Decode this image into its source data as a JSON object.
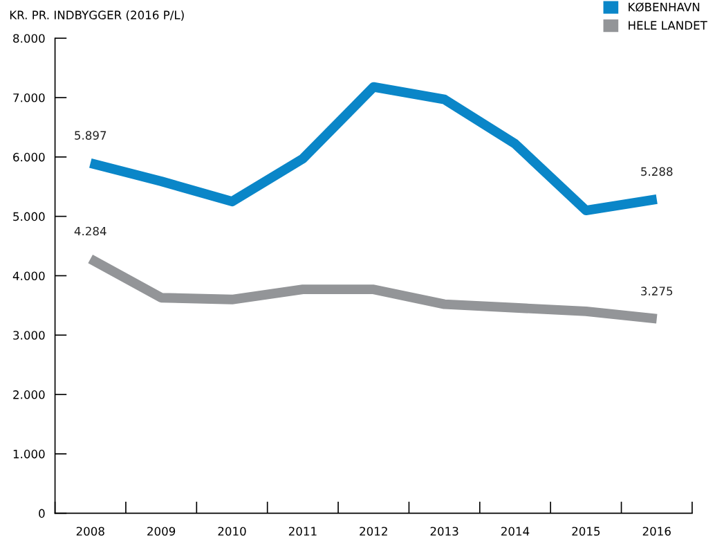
{
  "chart_data": {
    "type": "line",
    "ylabel": "KR. PR. INDBYGGER (2016 P/L)",
    "categories": [
      "2008",
      "2009",
      "2010",
      "2011",
      "2012",
      "2013",
      "2014",
      "2015",
      "2016"
    ],
    "series": [
      {
        "name": "KØBENHAVN",
        "color": "#0a86c8",
        "values": [
          5897,
          5590,
          5250,
          5970,
          7180,
          6970,
          6220,
          5100,
          5288
        ],
        "value_labels": [
          "5.897",
          null,
          null,
          null,
          null,
          null,
          null,
          null,
          "5.288"
        ]
      },
      {
        "name": "HELE LANDET",
        "color": "#939598",
        "values": [
          4284,
          3630,
          3600,
          3770,
          3770,
          3520,
          3460,
          3400,
          3275
        ],
        "value_labels": [
          "4.284",
          null,
          null,
          null,
          null,
          null,
          null,
          null,
          "3.275"
        ]
      }
    ],
    "ylim": [
      0,
      8000
    ],
    "yticks": [
      0,
      {
        "value": 1000,
        "label": "1.000"
      },
      {
        "value": 2000,
        "label": "2.000"
      },
      {
        "value": 3000,
        "label": "3.000"
      },
      {
        "value": 4000,
        "label": "4.000"
      },
      {
        "value": 5000,
        "label": "5.000"
      },
      {
        "value": 6000,
        "label": "6.000"
      },
      {
        "value": 7000,
        "label": "7.000"
      },
      {
        "value": 8000,
        "label": "8.000"
      }
    ],
    "grid": false,
    "legend": "top right",
    "marker": "none",
    "line_style": "solid"
  }
}
